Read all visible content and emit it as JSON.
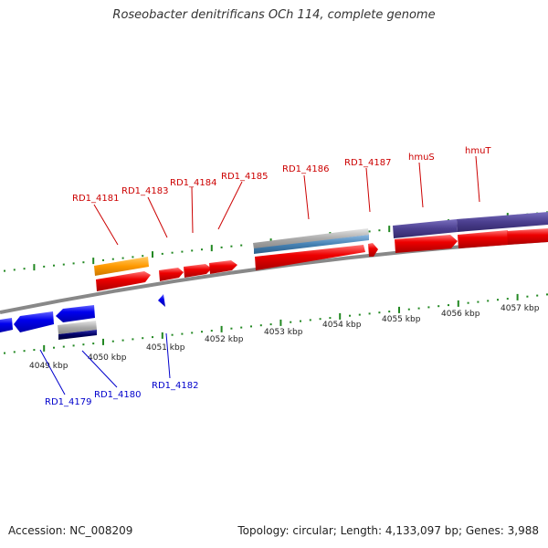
{
  "title": "Roseobacter denitrificans OCh 114, complete genome",
  "footer": {
    "accession": "Accession: NC_008209",
    "summary": "Topology: circular; Length: 4,133,097 bp; Genes: 3,988"
  },
  "scale_ticks": [
    "4049 kbp",
    "4050 kbp",
    "4051 kbp",
    "4052 kbp",
    "4053 kbp",
    "4054 kbp",
    "4055 kbp",
    "4056 kbp",
    "4057 kbp"
  ],
  "forward_labels": [
    "RD1_4181",
    "RD1_4183",
    "RD1_4184",
    "RD1_4185",
    "RD1_4186",
    "RD1_4187",
    "hmuS",
    "hmuT"
  ],
  "reverse_labels": [
    "RD1_4179",
    "RD1_4180",
    "RD1_4182"
  ],
  "colors": {
    "forward_gene": "#ee0000",
    "reverse_gene": "#0000ee",
    "orange_feature": "#ff9900",
    "purple_feature": "#4b3f8f",
    "grey_feature": "#aaaaaa",
    "steel_feature": "#4682b4",
    "navy_feature": "#000066",
    "backbone": "#888888",
    "tick_green": "#228822",
    "forward_label": "#cc0000",
    "reverse_label": "#0000cc"
  }
}
